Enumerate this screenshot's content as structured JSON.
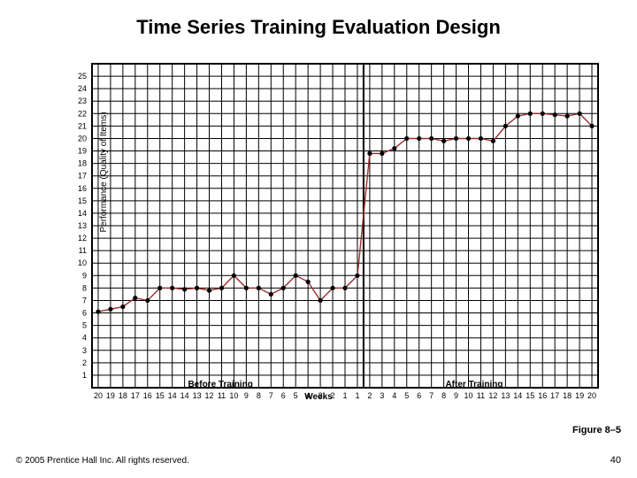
{
  "title": "Time Series Training Evaluation Design",
  "title_fontsize": 22,
  "figure_label": "Figure 8–5",
  "figure_label_fontsize": 11,
  "copyright": "© 2005 Prentice Hall Inc. All rights reserved.",
  "copyright_fontsize": 10,
  "page_number": "40",
  "page_number_fontsize": 11,
  "chart": {
    "type": "line",
    "background_color": "#ffffff",
    "grid_color": "#000000",
    "grid_width": 1,
    "border_color": "#000000",
    "border_width": 2,
    "line_color": "#9e2b2b",
    "line_width": 1.4,
    "marker_color": "#000000",
    "marker_radius": 2.6,
    "ylabel": "Performance (Quality of Items)",
    "xlabel": "Weeks",
    "before_label": "Before Training",
    "after_label": "After Training",
    "label_fontsize": 10,
    "tick_fontsize": 9,
    "ylim": [
      0,
      26
    ],
    "ytick_step": 1,
    "yticks": [
      1,
      2,
      3,
      4,
      5,
      6,
      7,
      8,
      9,
      10,
      11,
      12,
      13,
      14,
      15,
      16,
      17,
      18,
      19,
      20,
      21,
      22,
      23,
      24,
      25
    ],
    "x_before": [
      20,
      19,
      18,
      17,
      16,
      15,
      14,
      14,
      13,
      12,
      11,
      10,
      9,
      8,
      7,
      6,
      5,
      4,
      3,
      2,
      1,
      1
    ],
    "x_after": [
      2,
      3,
      4,
      5,
      6,
      7,
      8,
      9,
      10,
      11,
      12,
      13,
      14,
      15,
      16,
      17,
      18,
      19,
      20
    ],
    "series": [
      {
        "seg": "before",
        "idx": 0,
        "y": 6.1
      },
      {
        "seg": "before",
        "idx": 1,
        "y": 6.3
      },
      {
        "seg": "before",
        "idx": 2,
        "y": 6.5
      },
      {
        "seg": "before",
        "idx": 3,
        "y": 7.2
      },
      {
        "seg": "before",
        "idx": 4,
        "y": 7.0
      },
      {
        "seg": "before",
        "idx": 5,
        "y": 8.0
      },
      {
        "seg": "before",
        "idx": 6,
        "y": 8.0
      },
      {
        "seg": "before",
        "idx": 7,
        "y": 7.9
      },
      {
        "seg": "before",
        "idx": 8,
        "y": 8.0
      },
      {
        "seg": "before",
        "idx": 9,
        "y": 7.8
      },
      {
        "seg": "before",
        "idx": 10,
        "y": 8.0
      },
      {
        "seg": "before",
        "idx": 11,
        "y": 9.0
      },
      {
        "seg": "before",
        "idx": 12,
        "y": 8.0
      },
      {
        "seg": "before",
        "idx": 13,
        "y": 8.0
      },
      {
        "seg": "before",
        "idx": 14,
        "y": 7.5
      },
      {
        "seg": "before",
        "idx": 15,
        "y": 8.0
      },
      {
        "seg": "before",
        "idx": 16,
        "y": 9.0
      },
      {
        "seg": "before",
        "idx": 17,
        "y": 8.5
      },
      {
        "seg": "before",
        "idx": 18,
        "y": 7.0
      },
      {
        "seg": "before",
        "idx": 19,
        "y": 8.0
      },
      {
        "seg": "before",
        "idx": 20,
        "y": 8.0
      },
      {
        "seg": "before",
        "idx": 21,
        "y": 9.0
      },
      {
        "seg": "after",
        "idx": 0,
        "y": 18.8
      },
      {
        "seg": "after",
        "idx": 1,
        "y": 18.8
      },
      {
        "seg": "after",
        "idx": 2,
        "y": 19.2
      },
      {
        "seg": "after",
        "idx": 3,
        "y": 20.0
      },
      {
        "seg": "after",
        "idx": 4,
        "y": 20.0
      },
      {
        "seg": "after",
        "idx": 5,
        "y": 20.0
      },
      {
        "seg": "after",
        "idx": 6,
        "y": 19.8
      },
      {
        "seg": "after",
        "idx": 7,
        "y": 20.0
      },
      {
        "seg": "after",
        "idx": 8,
        "y": 20.0
      },
      {
        "seg": "after",
        "idx": 9,
        "y": 20.0
      },
      {
        "seg": "after",
        "idx": 10,
        "y": 19.8
      },
      {
        "seg": "after",
        "idx": 11,
        "y": 21.0
      },
      {
        "seg": "after",
        "idx": 12,
        "y": 21.8
      },
      {
        "seg": "after",
        "idx": 13,
        "y": 22.0
      },
      {
        "seg": "after",
        "idx": 14,
        "y": 22.0
      },
      {
        "seg": "after",
        "idx": 15,
        "y": 21.9
      },
      {
        "seg": "after",
        "idx": 16,
        "y": 21.8
      },
      {
        "seg": "after",
        "idx": 17,
        "y": 22.0
      },
      {
        "seg": "after",
        "idx": 18,
        "y": 21.0
      }
    ]
  }
}
